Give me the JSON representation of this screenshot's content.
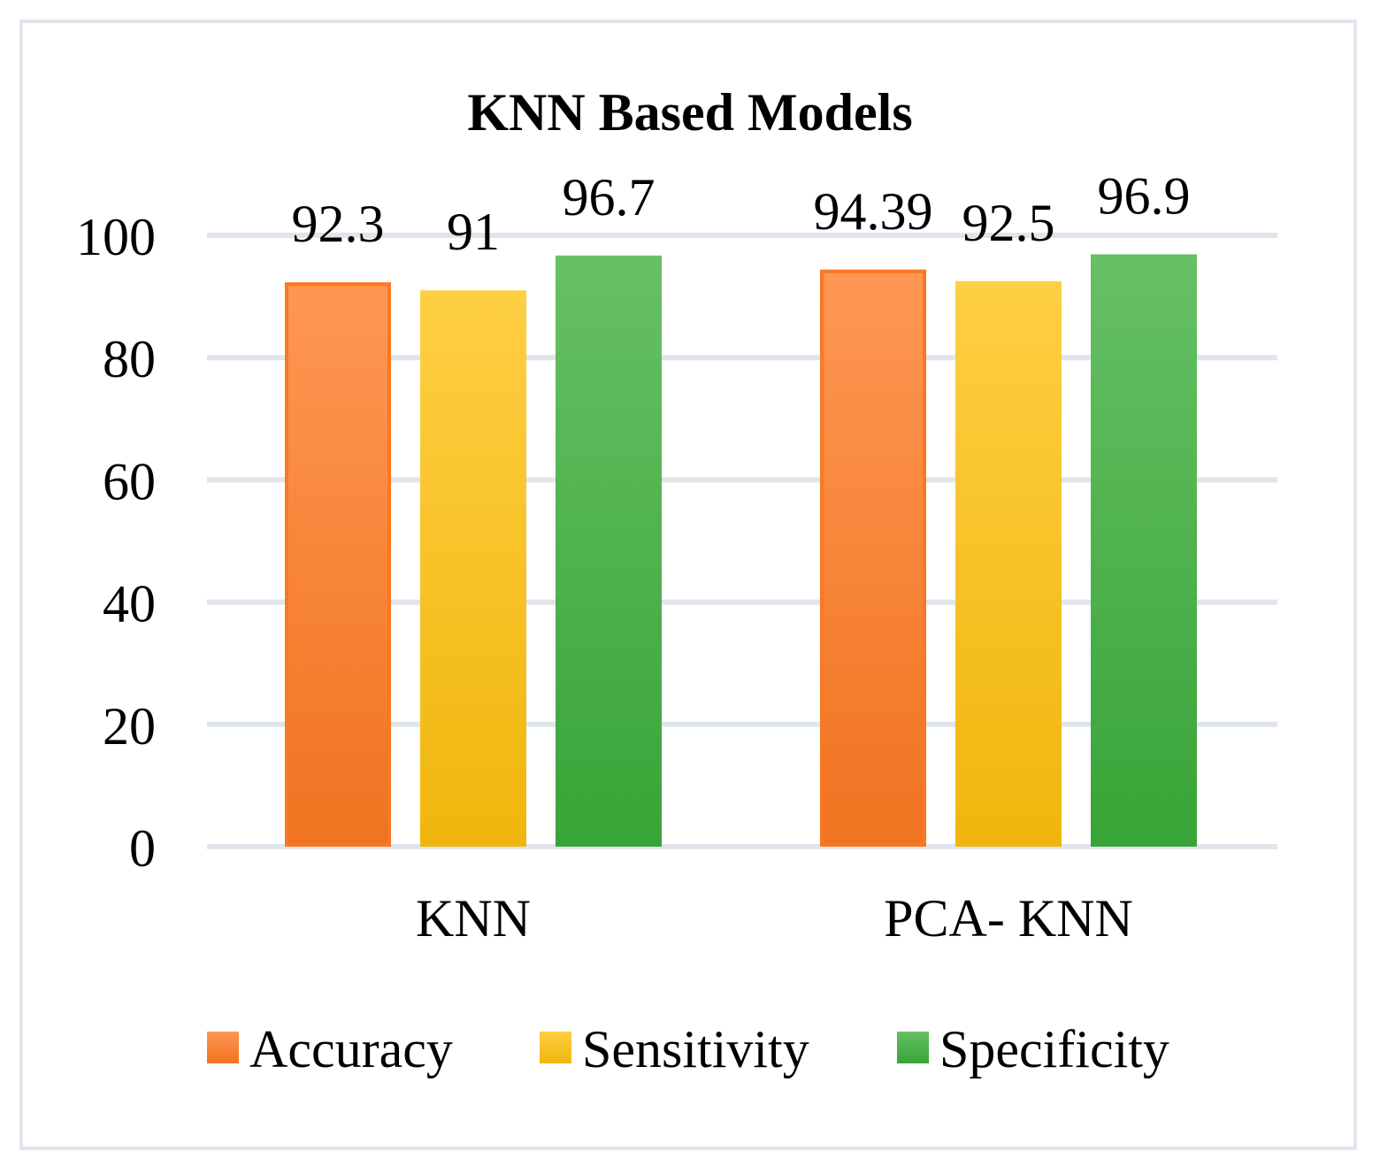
{
  "chart_data": {
    "type": "bar",
    "title": "KNN Based Models",
    "categories": [
      "KNN",
      "PCA- KNN"
    ],
    "series": [
      {
        "name": "Accuracy",
        "values": [
          92.3,
          94.39
        ],
        "labels": [
          "92.3",
          "94.39"
        ],
        "color": "#ff7a22"
      },
      {
        "name": "Sensitivity",
        "values": [
          91,
          92.5
        ],
        "labels": [
          "91",
          "92.5"
        ],
        "color": "#ffc20e"
      },
      {
        "name": "Specificity",
        "values": [
          96.7,
          96.9
        ],
        "labels": [
          "96.7",
          "96.9"
        ],
        "color": "#3cae3a"
      }
    ],
    "ylim": [
      0,
      100
    ],
    "yticks": [
      0,
      20,
      40,
      60,
      80,
      100
    ],
    "ytick_labels": [
      "0",
      "20",
      "40",
      "60",
      "80",
      "100"
    ],
    "xlabel": "",
    "ylabel": "",
    "grid": true,
    "legend_position": "bottom"
  }
}
